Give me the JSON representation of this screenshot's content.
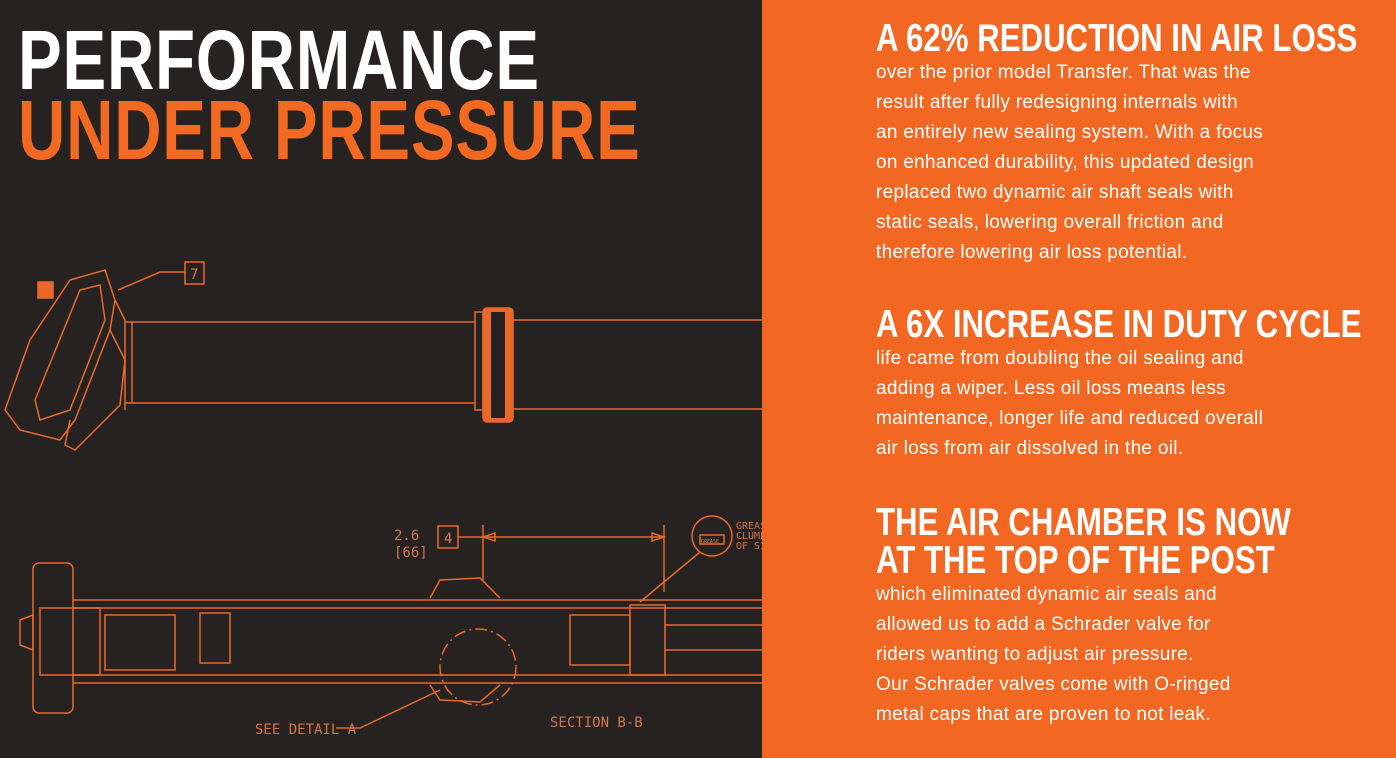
{
  "headline": {
    "line1": "PERFORMANCE",
    "line2": "UNDER PRESSURE"
  },
  "colors": {
    "background_dark": "#252221",
    "accent_orange": "#f26722",
    "drawing_line": "#e8692a",
    "text": "#ffffff"
  },
  "drawing": {
    "callout_7": "7",
    "dimension_value": "2.6",
    "dimension_metric": "[66]",
    "callout_4": "4",
    "grease_icon_label": "GREASE",
    "grease_note": [
      "GREAS",
      "CLUMP",
      "OF SI"
    ],
    "see_detail": "SEE DETAIL A",
    "section_label": "SECTION B-B"
  },
  "sections": [
    {
      "heading": [
        "A 62% REDUCTION IN AIR LOSS"
      ],
      "body": "over the prior model Transfer.  That was the\nresult after fully redesigning internals with\nan entirely new sealing system. With a focus\non enhanced durability, this updated design\nreplaced two dynamic air shaft seals with\nstatic seals, lowering overall friction and\ntherefore lowering air loss potential."
    },
    {
      "heading": [
        "A 6X INCREASE IN DUTY CYCLE"
      ],
      "body": "life came from doubling the oil sealing and\nadding a wiper. Less oil loss means less\nmaintenance, longer life and reduced overall\nair loss from air dissolved in the oil."
    },
    {
      "heading": [
        "THE AIR CHAMBER IS NOW",
        "AT THE TOP OF THE POST"
      ],
      "body": "which eliminated dynamic air seals and\nallowed us to add a Schrader valve for\nriders wanting to adjust air pressure.\nOur Schrader valves come with O-ringed\nmetal caps that are proven to not leak."
    }
  ]
}
